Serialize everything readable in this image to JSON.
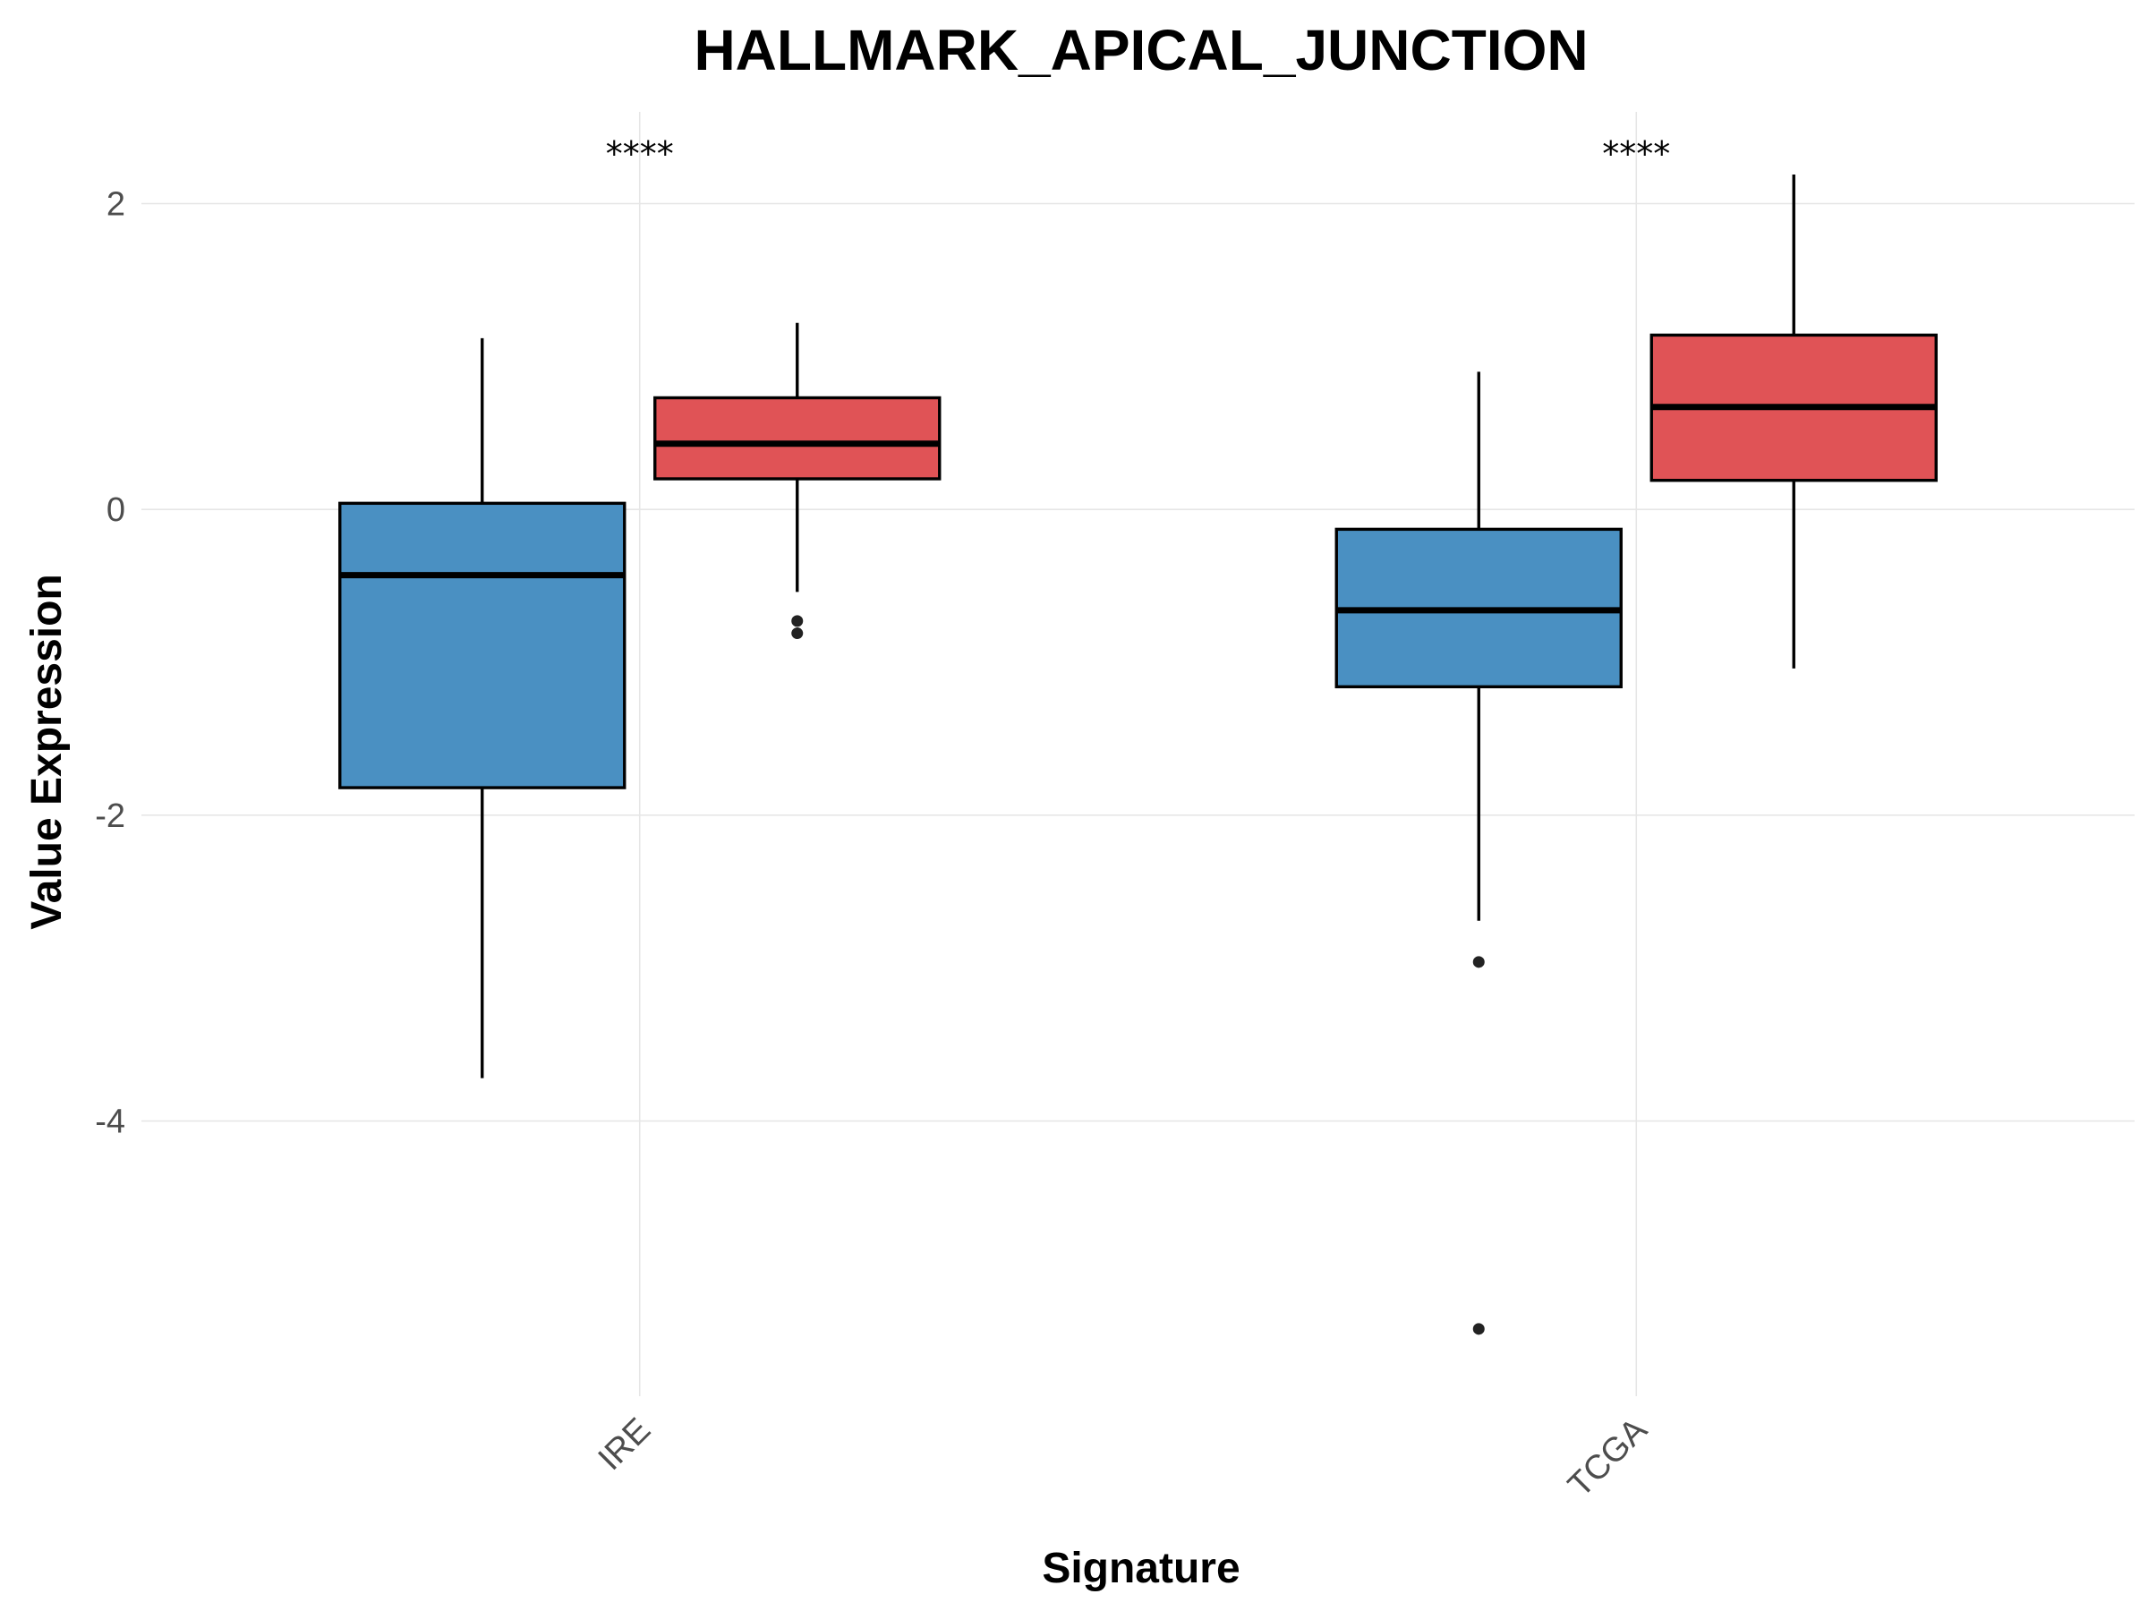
{
  "chart_data": {
    "type": "box",
    "title": "HALLMARK_APICAL_JUNCTION",
    "xlabel": "Signature",
    "ylabel": "Value Expression",
    "categories": [
      "IRE",
      "TCGA"
    ],
    "ylim": [
      -5.8,
      2.6
    ],
    "yticks": [
      2,
      0,
      -2,
      -4
    ],
    "grid": true,
    "legend": "none",
    "significance": [
      "****",
      "****"
    ],
    "series": [
      {
        "color": "#4a90c2",
        "boxes": [
          {
            "category": "IRE",
            "whisker_low": -3.72,
            "q1": -1.82,
            "median": -0.43,
            "q3": 0.04,
            "whisker_high": 1.12,
            "outliers": []
          },
          {
            "category": "TCGA",
            "whisker_low": -2.69,
            "q1": -1.16,
            "median": -0.66,
            "q3": -0.13,
            "whisker_high": 0.9,
            "outliers": [
              -2.96,
              -5.36
            ]
          }
        ]
      },
      {
        "color": "#e05356",
        "boxes": [
          {
            "category": "IRE",
            "whisker_low": -0.54,
            "q1": 0.2,
            "median": 0.43,
            "q3": 0.73,
            "whisker_high": 1.22,
            "outliers": [
              -0.73,
              -0.81
            ]
          },
          {
            "category": "TCGA",
            "whisker_low": -1.04,
            "q1": 0.19,
            "median": 0.67,
            "q3": 1.14,
            "whisker_high": 2.19,
            "outliers": []
          }
        ]
      }
    ]
  }
}
